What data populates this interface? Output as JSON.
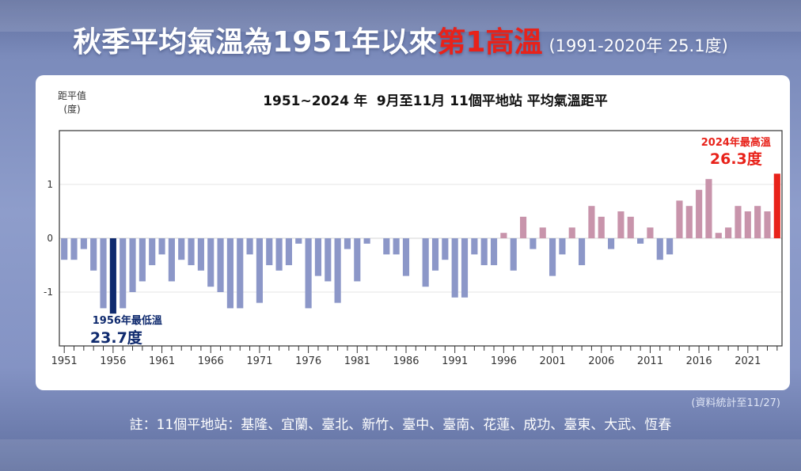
{
  "header": {
    "title_main": "秋季平均氣溫為1951年以來",
    "title_highlight": "第1高溫",
    "title_sub": "(1991-2020年 25.1度)"
  },
  "colors": {
    "negative": "#8c97c8",
    "positive": "#c894ab",
    "record_low": "#0f2a6e",
    "record_high": "#e8221a"
  },
  "chart_data": {
    "type": "bar",
    "title": "1951~2024 年  9月至11月 11個平地站 平均氣溫距平",
    "ylabel": "距平值",
    "yunit": "(度)",
    "ylim": [
      -2.0,
      2.0
    ],
    "yticks": [
      1,
      0,
      -1
    ],
    "xticks": [
      1951,
      1956,
      1961,
      1966,
      1971,
      1976,
      1981,
      1986,
      1991,
      1996,
      2001,
      2006,
      2011,
      2016,
      2021
    ],
    "x": [
      1951,
      1952,
      1953,
      1954,
      1955,
      1956,
      1957,
      1958,
      1959,
      1960,
      1961,
      1962,
      1963,
      1964,
      1965,
      1966,
      1967,
      1968,
      1969,
      1970,
      1971,
      1972,
      1973,
      1974,
      1975,
      1976,
      1977,
      1978,
      1979,
      1980,
      1981,
      1982,
      1983,
      1984,
      1985,
      1986,
      1987,
      1988,
      1989,
      1990,
      1991,
      1992,
      1993,
      1994,
      1995,
      1996,
      1997,
      1998,
      1999,
      2000,
      2001,
      2002,
      2003,
      2004,
      2005,
      2006,
      2007,
      2008,
      2009,
      2010,
      2011,
      2012,
      2013,
      2014,
      2015,
      2016,
      2017,
      2018,
      2019,
      2020,
      2021,
      2022,
      2023,
      2024
    ],
    "values": [
      -0.4,
      -0.4,
      -0.2,
      -0.6,
      -1.3,
      -1.4,
      -1.3,
      -1.0,
      -0.8,
      -0.5,
      -0.3,
      -0.8,
      -0.4,
      -0.5,
      -0.6,
      -0.9,
      -1.0,
      -1.3,
      -1.3,
      -0.3,
      -1.2,
      -0.5,
      -0.6,
      -0.5,
      -0.1,
      -1.3,
      -0.7,
      -0.8,
      -1.2,
      -0.2,
      -0.8,
      -0.1,
      0.0,
      -0.3,
      -0.3,
      -0.7,
      0.0,
      -0.9,
      -0.6,
      -0.4,
      -1.1,
      -1.1,
      -0.3,
      -0.5,
      -0.5,
      0.1,
      -0.6,
      0.4,
      -0.2,
      0.2,
      -0.7,
      -0.3,
      0.2,
      -0.5,
      0.6,
      0.4,
      -0.2,
      0.5,
      0.4,
      -0.1,
      0.2,
      -0.4,
      -0.3,
      0.7,
      0.6,
      0.9,
      1.1,
      0.1,
      0.2,
      0.6,
      0.5,
      0.6,
      0.5,
      1.2
    ],
    "annotations": [
      {
        "year": 1956,
        "label": "1956年最低溫",
        "value": "23.7度"
      },
      {
        "year": 2024,
        "label": "2024年最高溫",
        "value": "26.3度"
      }
    ]
  },
  "source_note": "(資料統計至11/27)",
  "footnote": "註：11個平地站：基隆、宜蘭、臺北、新竹、臺中、臺南、花蓮、成功、臺東、大武、恆春"
}
